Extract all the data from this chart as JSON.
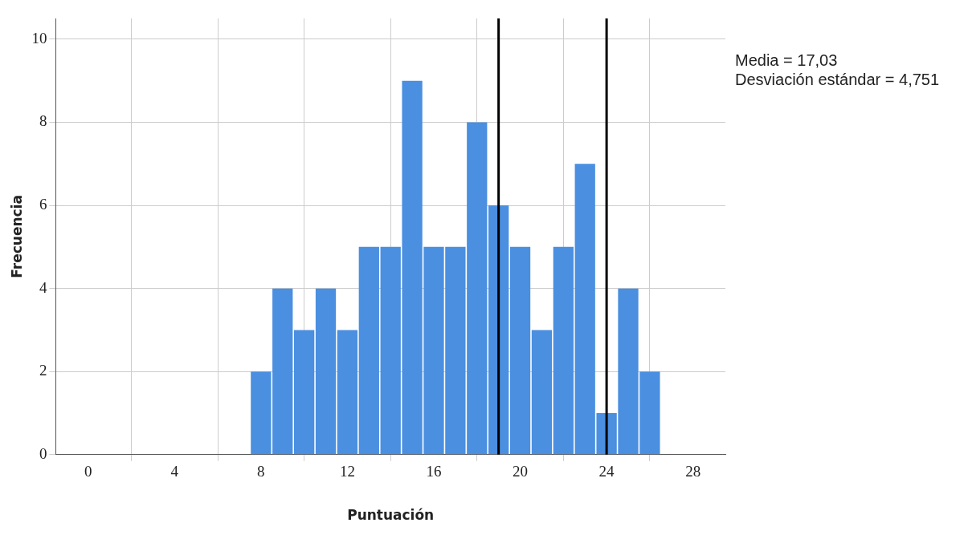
{
  "chart_data": {
    "type": "histogram",
    "xlabel": "Puntuación",
    "ylabel": "Frecuencia",
    "bins": [
      7.5,
      8.5,
      9.5,
      10.5,
      11.5,
      12.5,
      13.5,
      14.5,
      15.5,
      16.5,
      17.5,
      18.5,
      19.5,
      20.5,
      21.5,
      22.5,
      23.5,
      24.5,
      25.5,
      26.5
    ],
    "values": [
      2,
      4,
      3,
      4,
      3,
      5,
      5,
      9,
      5,
      5,
      8,
      6,
      5,
      3,
      5,
      7,
      1,
      4,
      2
    ],
    "color": "#4a8fe0",
    "xlim": [
      -1.5,
      29.5
    ],
    "xticks": [
      0,
      4,
      8,
      12,
      16,
      20,
      24,
      28
    ],
    "ylim": [
      0,
      10.5
    ],
    "yticks": [
      0,
      2,
      4,
      6,
      8,
      10
    ],
    "grid": true,
    "ref_lines": [
      {
        "axis": "x",
        "value": 19,
        "color": "#000000"
      },
      {
        "axis": "x",
        "value": 24,
        "color": "#000000"
      }
    ],
    "annotations": [
      "Media = 17,03",
      "Desviación estándar = 4,751"
    ]
  }
}
